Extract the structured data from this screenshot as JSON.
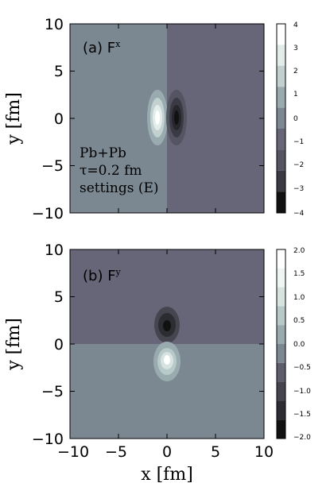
{
  "colors": {
    "background": "#ffffff",
    "axis": "#000000",
    "levels_fx": [
      "#111111",
      "#3a3a44",
      "#545462",
      "#666678",
      "#7b8892",
      "#9aabb0",
      "#c2d0d0",
      "#e2ecea",
      "#ffffff"
    ],
    "levels_fy": [
      "#111111",
      "#2c2c33",
      "#45454f",
      "#5d5d6c",
      "#7b8892",
      "#9aabb0",
      "#b8c9c9",
      "#d6e3e1",
      "#eef5f3",
      "#ffffff"
    ]
  },
  "chart_data": [
    {
      "type": "heatmap",
      "panel_label": "(a) F",
      "panel_label_sup": "x",
      "ylabel": "y [fm]",
      "xlabel": "",
      "xlim": [
        -10,
        10
      ],
      "ylim": [
        -10,
        10
      ],
      "xticks": [],
      "yticks": [
        "10",
        "5",
        "0",
        "−5",
        "−10"
      ],
      "colorbar": {
        "range": [
          -4,
          4
        ],
        "ticks": [
          "4",
          "3",
          "2",
          "1",
          "0",
          "−1",
          "−2",
          "−3",
          "−4"
        ]
      },
      "annotations": [
        "Pb+Pb",
        "τ=0.2 fm",
        "settings (E)"
      ],
      "field": {
        "left_half_value": 0.3,
        "right_half_value": -0.7,
        "positive_lobe": {
          "x": -1.0,
          "y": 0,
          "peak": 4
        },
        "negative_lobe": {
          "x": 1.0,
          "y": 0,
          "peak": -4
        }
      }
    },
    {
      "type": "heatmap",
      "panel_label": "(b) F",
      "panel_label_sup": "y",
      "ylabel": "y [fm]",
      "xlabel": "x [fm]",
      "xlim": [
        -10,
        10
      ],
      "ylim": [
        -10,
        10
      ],
      "xticks": [
        "−10",
        "−5",
        "0",
        "5",
        "10"
      ],
      "yticks": [
        "10",
        "5",
        "0",
        "−5",
        "−10"
      ],
      "colorbar": {
        "range": [
          -2,
          2
        ],
        "ticks": [
          "2.0",
          "1.5",
          "1.0",
          "0.5",
          "0.0",
          "−0.5",
          "−1.0",
          "−1.5",
          "−2.0"
        ]
      },
      "annotations": [],
      "field": {
        "top_half_value": -0.4,
        "bottom_half_value": 0.15,
        "negative_lobe": {
          "x": 0,
          "y": 2.0,
          "peak": -2
        },
        "positive_lobe": {
          "x": 0,
          "y": -2.0,
          "peak": 2
        }
      }
    }
  ]
}
